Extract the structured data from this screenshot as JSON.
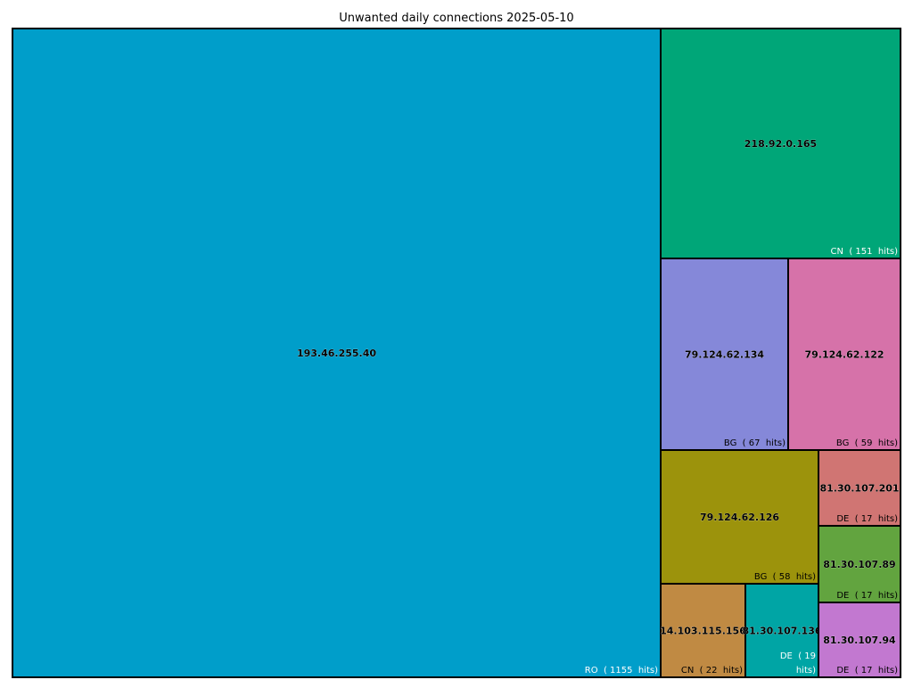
{
  "chart_data": {
    "type": "treemap",
    "title": "Unwanted daily connections 2025-05-10",
    "items": [
      {
        "ip": "193.46.255.40",
        "country": "RO",
        "hits": 1155,
        "label": "RO  ( 1155  hits)",
        "color": "#009ECA",
        "label_color": "#ffffff"
      },
      {
        "ip": "218.92.0.165",
        "country": "CN",
        "hits": 151,
        "label": "CN  ( 151  hits)",
        "color": "#00A678",
        "label_color": "#ffffff"
      },
      {
        "ip": "79.124.62.134",
        "country": "BG",
        "hits": 67,
        "label": "BG  ( 67  hits)",
        "color": "#8588D9",
        "label_color": "#000000"
      },
      {
        "ip": "79.124.62.122",
        "country": "BG",
        "hits": 59,
        "label": "BG  ( 59  hits)",
        "color": "#D672A9",
        "label_color": "#000000"
      },
      {
        "ip": "79.124.62.126",
        "country": "BG",
        "hits": 58,
        "label": "BG  ( 58  hits)",
        "color": "#9C930C",
        "label_color": "#000000"
      },
      {
        "ip": "81.30.107.201",
        "country": "DE",
        "hits": 17,
        "label": "DE  ( 17  hits)",
        "color": "#D07573",
        "label_color": "#000000"
      },
      {
        "ip": "81.30.107.89",
        "country": "DE",
        "hits": 17,
        "label": "DE  ( 17  hits)",
        "color": "#62A43F",
        "label_color": "#000000"
      },
      {
        "ip": "14.103.115.156",
        "country": "CN",
        "hits": 22,
        "label": "CN  ( 22  hits)",
        "color": "#C08A43",
        "label_color": "#000000"
      },
      {
        "ip": "81.30.107.136",
        "country": "DE",
        "hits": 19,
        "label": "DE  ( 19\nhits)",
        "color": "#00A5A5",
        "label_color": "#ffffff"
      },
      {
        "ip": "81.30.107.94",
        "country": "DE",
        "hits": 17,
        "label": "DE  ( 17  hits)",
        "color": "#C278D0",
        "label_color": "#000000"
      }
    ]
  }
}
